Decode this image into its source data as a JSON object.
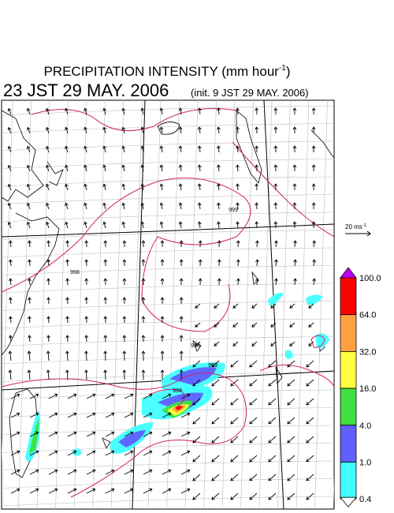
{
  "header": {
    "title": {
      "text": "PRECIPITATION INTENSITY (mm hour",
      "superscript": "-1",
      "close": ")"
    },
    "valid_time": "23 JST 29 MAY. 2006",
    "init_time": "(init. 9 JST 29 MAY. 2006)"
  },
  "wind_scale": {
    "text": "20 ms",
    "superscript": "-1"
  },
  "contour_labels": [
    "999",
    "998",
    "998",
    "998",
    "999"
  ],
  "colorbar": {
    "levels": [
      {
        "label": "100.0",
        "color": "#ff0000"
      },
      {
        "label": "64.0",
        "color": "#ffa040"
      },
      {
        "label": "32.0",
        "color": "#ffff40"
      },
      {
        "label": "16.0",
        "color": "#40e040"
      },
      {
        "label": "4.0",
        "color": "#6060ff"
      },
      {
        "label": "1.0",
        "color": "#40ffff"
      },
      {
        "label": "0.4",
        "color": "#ffffff"
      }
    ],
    "top_color": "#c000ff"
  }
}
